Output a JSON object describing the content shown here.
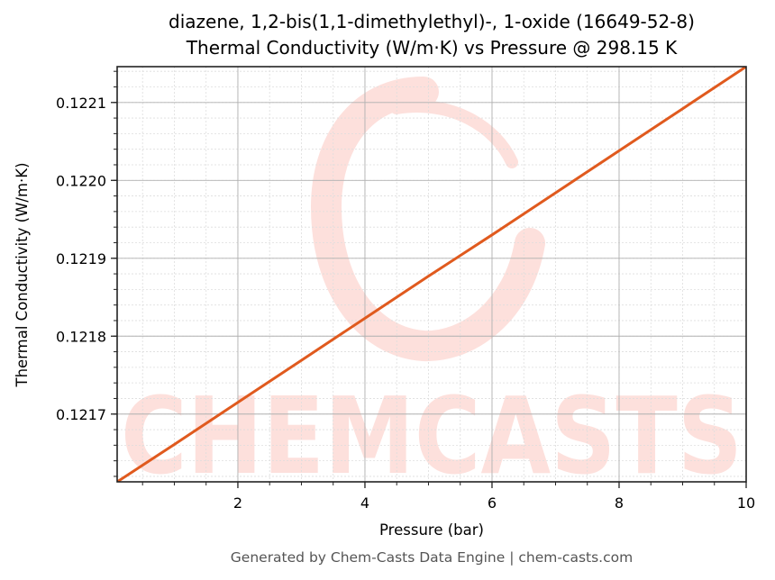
{
  "chart_data": {
    "type": "line",
    "title": "diazene, 1,2-bis(1,1-dimethylethyl)-, 1-oxide (16649-52-8)",
    "subtitle": "Thermal Conductivity (W/m·K) vs Pressure @ 298.15 K",
    "xlabel": "Pressure (bar)",
    "ylabel": "Thermal Conductivity (W/m·K)",
    "xlim": [
      0.1,
      10
    ],
    "ylim": [
      0.121613,
      0.122146
    ],
    "xticks": [
      2,
      4,
      6,
      8,
      10
    ],
    "xtick_labels": [
      "2",
      "4",
      "6",
      "8",
      "10"
    ],
    "yticks": [
      0.1217,
      0.1218,
      0.1219,
      0.122,
      0.1221
    ],
    "ytick_labels": [
      "0.1217",
      "0.1218",
      "0.1219",
      "0.1220",
      "0.1221"
    ],
    "x_minor_step": 0.5,
    "y_minor_step": 2e-05,
    "grid": true,
    "legend": null,
    "series": [
      {
        "name": "Thermal Conductivity",
        "color": "#e05a1e",
        "x": [
          0.1,
          1,
          2,
          3,
          4,
          5,
          6,
          7,
          8,
          9,
          10
        ],
        "y": [
          0.121613,
          0.121661,
          0.121715,
          0.121769,
          0.121823,
          0.121877,
          0.12193,
          0.121984,
          0.122038,
          0.122092,
          0.122146
        ]
      }
    ]
  },
  "watermark": {
    "text": "CHEMCASTS",
    "color": "#fde0dc"
  },
  "footer": {
    "text": "Generated by Chem-Casts Data Engine | chem-casts.com"
  }
}
